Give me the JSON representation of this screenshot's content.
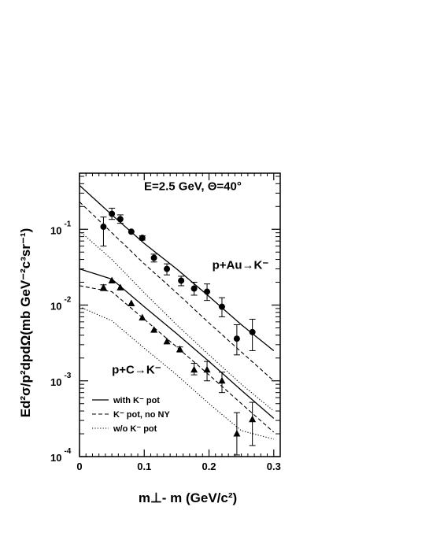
{
  "chart_data": {
    "type": "scatter",
    "title": "",
    "xlabel": "m⊥- m (GeV/c²)",
    "ylabel": "Ed²σ/p²dpdΩ(mb GeV⁻²c³sr⁻¹)",
    "xlim": [
      0,
      0.31
    ],
    "ylim": [
      0.0001,
      0.55
    ],
    "yscale": "log",
    "grid": false,
    "legend_position": "bottom-left",
    "x_ticks": [
      0,
      0.1,
      0.2,
      0.3
    ],
    "x_tick_labels": [
      "0",
      "0.1",
      "0.2",
      "0.3"
    ],
    "y_ticks": [
      0.0001,
      0.001,
      0.01,
      0.1
    ],
    "y_tick_labels": [
      {
        "base": "10",
        "exp": "-4"
      },
      {
        "base": "10",
        "exp": "-3"
      },
      {
        "base": "10",
        "exp": "-2"
      },
      {
        "base": "10",
        "exp": "-1"
      }
    ],
    "annotations": [
      {
        "text": "E=2.5 GeV, Θ=40°",
        "x": 0.175,
        "y": 0.33
      },
      {
        "text": "p+Au→K⁻",
        "x": 0.205,
        "y": 0.03
      },
      {
        "text": "p+C→K⁻",
        "x": 0.05,
        "y": 0.00125
      }
    ],
    "legend": [
      {
        "label": "with K⁻ pot",
        "style": "solid"
      },
      {
        "label": "K⁻ pot, no NY",
        "style": "dashed"
      },
      {
        "label": "w/o  K⁻ pot",
        "style": "dotted"
      }
    ],
    "series": [
      {
        "kind": "data",
        "marker": "circle",
        "x": [
          0.037,
          0.05,
          0.063,
          0.08,
          0.097,
          0.115,
          0.135,
          0.157,
          0.177,
          0.197,
          0.22,
          0.243,
          0.267
        ],
        "y": [
          0.108,
          0.16,
          0.136,
          0.093,
          0.077,
          0.042,
          0.03,
          0.021,
          0.0165,
          0.015,
          0.0095,
          0.0036,
          0.0044
        ],
        "err_low": [
          0.06,
          0.135,
          0.12,
          0.093,
          0.072,
          0.037,
          0.025,
          0.018,
          0.0135,
          0.0115,
          0.007,
          0.0022,
          0.0025
        ],
        "err_high": [
          0.145,
          0.19,
          0.155,
          0.093,
          0.082,
          0.047,
          0.035,
          0.024,
          0.02,
          0.019,
          0.0125,
          0.0055,
          0.0065
        ]
      },
      {
        "kind": "data",
        "marker": "triangle",
        "x": [
          0.037,
          0.05,
          0.063,
          0.08,
          0.097,
          0.115,
          0.135,
          0.155,
          0.177,
          0.197,
          0.22,
          0.243,
          0.267
        ],
        "y": [
          0.017,
          0.021,
          0.017,
          0.0105,
          0.0068,
          0.0047,
          0.0033,
          0.0026,
          0.0014,
          0.0014,
          0.001,
          0.0002,
          0.00031
        ],
        "err_low": [
          0.0155,
          0.021,
          0.017,
          0.0105,
          0.0068,
          0.0047,
          0.0033,
          0.0024,
          0.0012,
          0.001,
          0.0007,
          0.000105,
          0.00014
        ],
        "err_high": [
          0.0185,
          0.021,
          0.017,
          0.0105,
          0.0068,
          0.0047,
          0.0033,
          0.0028,
          0.0017,
          0.0018,
          0.0013,
          0.00038,
          0.00052
        ]
      },
      {
        "kind": "curve",
        "style": "solid",
        "x": [
          0,
          0.05,
          0.1,
          0.15,
          0.2,
          0.25,
          0.3
        ],
        "y": [
          0.38,
          0.155,
          0.065,
          0.03,
          0.013,
          0.0055,
          0.0025
        ]
      },
      {
        "kind": "curve",
        "style": "dashed",
        "x": [
          0,
          0.05,
          0.1,
          0.15,
          0.2,
          0.25,
          0.3
        ],
        "y": [
          0.23,
          0.09,
          0.035,
          0.0145,
          0.0058,
          0.0024,
          0.001
        ]
      },
      {
        "kind": "curve",
        "style": "dotted",
        "x": [
          0,
          0.05,
          0.1,
          0.15,
          0.2,
          0.25,
          0.3
        ],
        "y": [
          0.095,
          0.04,
          0.0145,
          0.0055,
          0.0022,
          0.0009,
          0.0004
        ]
      },
      {
        "kind": "curve",
        "style": "solid",
        "x": [
          0,
          0.05,
          0.1,
          0.15,
          0.2,
          0.25,
          0.3
        ],
        "y": [
          0.03,
          0.022,
          0.0095,
          0.0042,
          0.0018,
          0.00075,
          0.00032
        ]
      },
      {
        "kind": "curve",
        "style": "dashed",
        "x": [
          0,
          0.05,
          0.1,
          0.15,
          0.2,
          0.25,
          0.3
        ],
        "y": [
          0.018,
          0.015,
          0.0065,
          0.0028,
          0.0012,
          0.0005,
          0.00021
        ]
      },
      {
        "kind": "curve",
        "style": "dotted",
        "x": [
          0,
          0.05,
          0.1,
          0.15,
          0.2,
          0.25,
          0.3
        ],
        "y": [
          0.0095,
          0.0062,
          0.0027,
          0.0012,
          0.0005,
          0.00022,
          0.00017
        ]
      }
    ]
  }
}
